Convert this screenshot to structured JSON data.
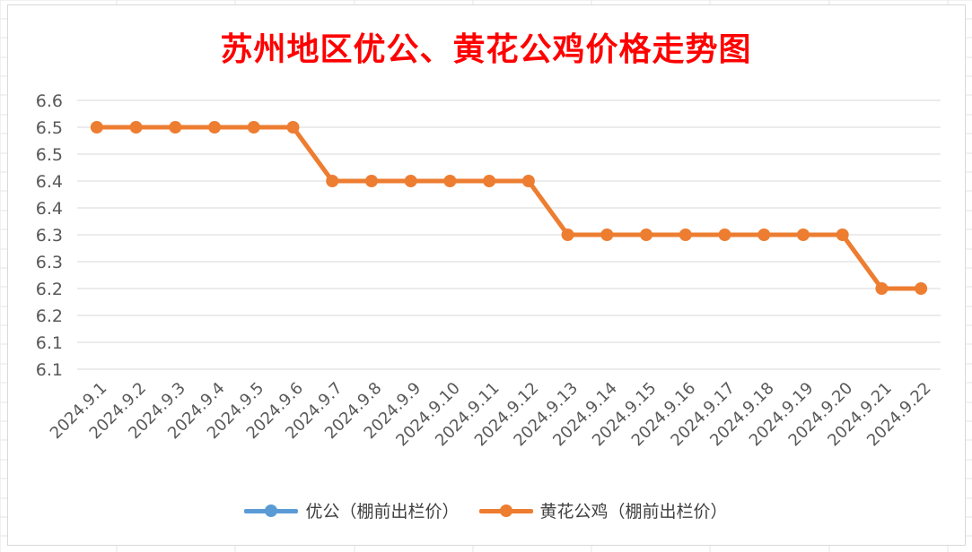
{
  "chart_data": {
    "type": "line",
    "title": "苏州地区优公、黄花公鸡价格走势图",
    "categories": [
      "2024.9.1",
      "2024.9.2",
      "2024.9.3",
      "2024.9.4",
      "2024.9.5",
      "2024.9.6",
      "2024.9.7",
      "2024.9.8",
      "2024.9.9",
      "2024.9.10",
      "2024.9.11",
      "2024.9.12",
      "2024.9.13",
      "2024.9.14",
      "2024.9.15",
      "2024.9.16",
      "2024.9.17",
      "2024.9.18",
      "2024.9.19",
      "2024.9.20",
      "2024.9.21",
      "2024.9.22"
    ],
    "y_tick_labels": [
      "6.6",
      "6.5",
      "6.5",
      "6.4",
      "6.4",
      "6.3",
      "6.3",
      "6.2",
      "6.2",
      "6.1",
      "6.1"
    ],
    "ylim": [
      6.05,
      6.55
    ],
    "grid": true,
    "legend_position": "bottom",
    "series": [
      {
        "name": "优公（棚前出栏价）",
        "color": "#5b9bd5",
        "values": [
          null,
          null,
          null,
          null,
          null,
          null,
          null,
          null,
          null,
          null,
          null,
          null,
          null,
          null,
          null,
          null,
          null,
          null,
          null,
          null,
          null,
          null
        ]
      },
      {
        "name": "黄花公鸡（棚前出栏价）",
        "color": "#ed7d31",
        "values": [
          6.5,
          6.5,
          6.5,
          6.5,
          6.5,
          6.5,
          6.4,
          6.4,
          6.4,
          6.4,
          6.4,
          6.4,
          6.3,
          6.3,
          6.3,
          6.3,
          6.3,
          6.3,
          6.3,
          6.3,
          6.2,
          6.2
        ]
      }
    ],
    "colors": {
      "title": "#ff0000",
      "grid": "#d9d9d9",
      "axis_text": "#595959"
    }
  }
}
